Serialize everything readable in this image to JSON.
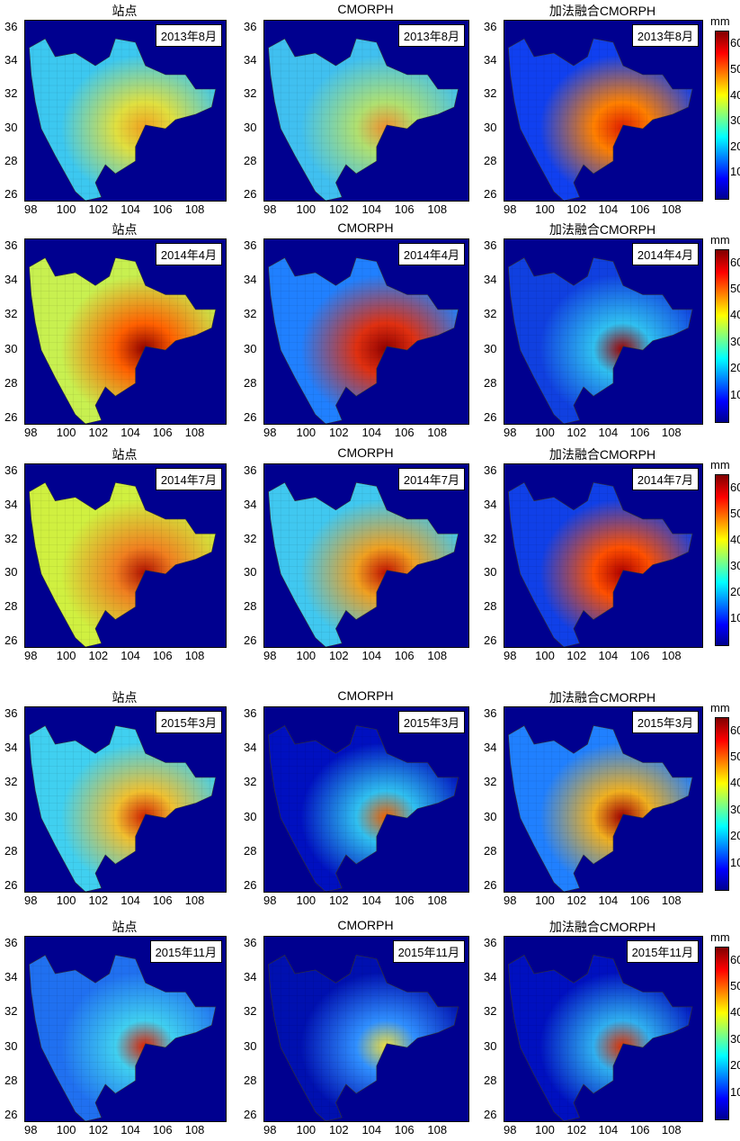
{
  "x_ticks": [
    "98",
    "100",
    "102",
    "104",
    "106",
    "108"
  ],
  "y_ticks": [
    "26",
    "28",
    "30",
    "32",
    "34",
    "36"
  ],
  "colorbar": {
    "unit": "mm",
    "ticks": [
      "10",
      "20",
      "30",
      "40",
      "50",
      "60"
    ],
    "max": 65
  },
  "rows": [
    {
      "panels": [
        {
          "title": "站点",
          "label": "2013年8月",
          "base": "#3cc8f0",
          "hot": "#e0e040",
          "hot2": "#f0a020"
        },
        {
          "title": "CMORPH",
          "label": "2013年8月",
          "base": "#40c0f0",
          "hot": "#b0e070",
          "hot2": "#f09030"
        },
        {
          "title": "加法融合CMORPH",
          "label": "2013年8月",
          "base": "#1040f0",
          "hot": "#ff8000",
          "hot2": "#e02000"
        }
      ]
    },
    {
      "panels": [
        {
          "title": "站点",
          "label": "2014年4月",
          "base": "#c8f050",
          "hot": "#ff6000",
          "hot2": "#900000"
        },
        {
          "title": "CMORPH",
          "label": "2014年4月",
          "base": "#2080ff",
          "hot": "#e03010",
          "hot2": "#900000"
        },
        {
          "title": "加法融合CMORPH",
          "label": "2014年4月",
          "base": "#1040e0",
          "hot": "#30c0f0",
          "hot2": "#a00000"
        }
      ]
    },
    {
      "panels": [
        {
          "title": "站点",
          "label": "2014年7月",
          "base": "#d0f040",
          "hot": "#f08020",
          "hot2": "#b01000"
        },
        {
          "title": "CMORPH",
          "label": "2014年7月",
          "base": "#40c8f0",
          "hot": "#f0a020",
          "hot2": "#c01000"
        },
        {
          "title": "加法融合CMORPH",
          "label": "2014年7月",
          "base": "#1040e8",
          "hot": "#ff5000",
          "hot2": "#b00000"
        }
      ]
    },
    {
      "panels": [
        {
          "title": "站点",
          "label": "2015年3月",
          "base": "#40d0f0",
          "hot": "#f0c030",
          "hot2": "#d02000"
        },
        {
          "title": "CMORPH",
          "label": "2015年3月",
          "base": "#0010c0",
          "hot": "#30c0f0",
          "hot2": "#f06000"
        },
        {
          "title": "加法融合CMORPH",
          "label": "2015年3月",
          "base": "#2080ff",
          "hot": "#f0b020",
          "hot2": "#a00000"
        }
      ]
    },
    {
      "panels": [
        {
          "title": "站点",
          "label": "2015年11月",
          "base": "#2070f0",
          "hot": "#40d0f0",
          "hot2": "#e02000"
        },
        {
          "title": "CMORPH",
          "label": "2015年11月",
          "base": "#0010b0",
          "hot": "#3090ff",
          "hot2": "#f0e040"
        },
        {
          "title": "加法融合CMORPH",
          "label": "2015年11月",
          "base": "#0010c0",
          "hot": "#30b0f0",
          "hot2": "#e03000"
        }
      ]
    }
  ]
}
